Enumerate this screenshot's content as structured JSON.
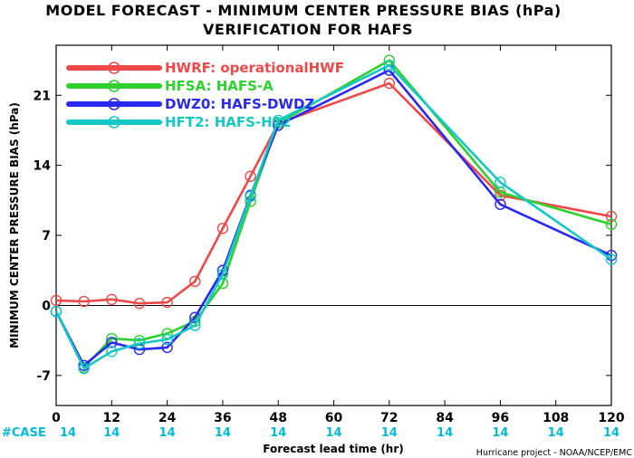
{
  "chart_data": {
    "type": "line",
    "title": "MODEL FORECAST - MINIMUM CENTER PRESSURE BIAS (hPa)",
    "subtitle": "VERIFICATION FOR HAFS",
    "xlabel": "Forecast lead time (hr)",
    "ylabel": "MINIMUM CENTER PRESSURE BIAS (hPa)",
    "credit": "Hurricane project - NOAA/NCEP/EMC",
    "xlim": [
      0,
      120
    ],
    "ylim": [
      -10,
      26
    ],
    "x_ticks": [
      "0",
      "12",
      "24",
      "36",
      "48",
      "60",
      "72",
      "84",
      "96",
      "108",
      "120"
    ],
    "y_ticks": [
      "-7",
      "0",
      "7",
      "14",
      "21"
    ],
    "zero_line": true,
    "grid": false,
    "legend_position": "top-left",
    "case_label": "#CASE",
    "case_counts": [
      "14",
      "14",
      "14",
      "14",
      "14",
      "14",
      "14",
      "14",
      "14",
      "14",
      "14"
    ],
    "series": [
      {
        "name": "HWRF: operationalHWF",
        "color": "#f04848",
        "x": [
          0,
          6,
          12,
          18,
          24,
          30,
          36,
          42,
          48,
          72,
          96,
          120
        ],
        "y": [
          0.5,
          0.4,
          0.6,
          0.2,
          0.3,
          2.4,
          7.7,
          12.9,
          18.2,
          22.2,
          11.0,
          8.9
        ]
      },
      {
        "name": "HFSA: HAFS-A",
        "color": "#2ed12e",
        "x": [
          0,
          6,
          12,
          18,
          24,
          30,
          36,
          42,
          48,
          72,
          96,
          120
        ],
        "y": [
          -0.6,
          -6.2,
          -3.3,
          -3.5,
          -2.8,
          -1.6,
          2.2,
          10.4,
          18.2,
          24.5,
          11.3,
          8.1
        ]
      },
      {
        "name": "DWZ0: HAFS-DWDZ",
        "color": "#2828f0",
        "x": [
          0,
          6,
          12,
          18,
          24,
          30,
          36,
          42,
          48,
          72,
          96,
          120
        ],
        "y": [
          -0.6,
          -6.0,
          -3.7,
          -4.4,
          -4.2,
          -1.2,
          3.5,
          11.0,
          18.0,
          23.5,
          10.1,
          5.0
        ]
      },
      {
        "name": "HFT2: HAFS-H12",
        "color": "#14c8c8",
        "x": [
          0,
          6,
          12,
          18,
          24,
          30,
          36,
          42,
          48,
          72,
          96,
          120
        ],
        "y": [
          -0.6,
          -6.3,
          -4.6,
          -3.8,
          -3.4,
          -2.0,
          3.1,
          10.9,
          18.5,
          24.0,
          12.3,
          4.6
        ]
      }
    ]
  }
}
